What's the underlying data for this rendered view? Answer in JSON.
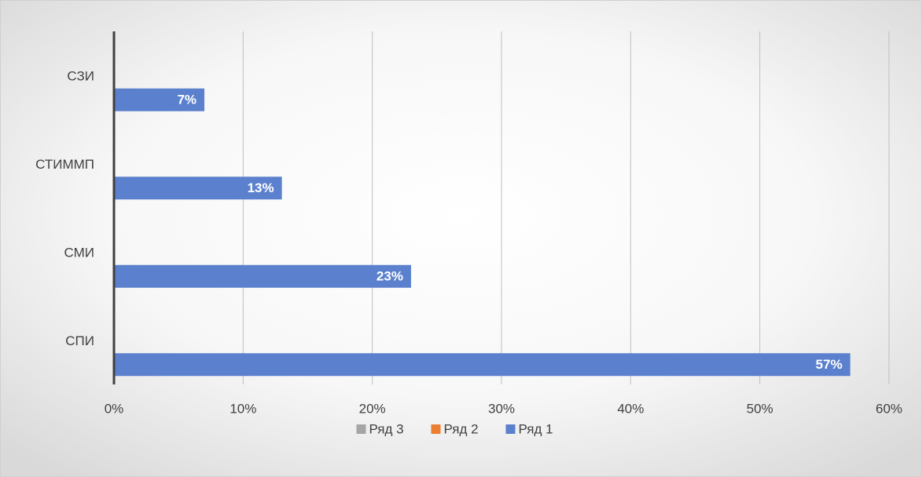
{
  "chart_data": {
    "type": "hbar",
    "categories": [
      "СПИ",
      "СМИ",
      "СТИММП",
      "СЗИ"
    ],
    "series": [
      {
        "name": "Ряд 1",
        "color": "#5b80cd",
        "values": [
          57,
          23,
          13,
          7
        ],
        "value_labels": [
          "57%",
          "23%",
          "13%",
          "7%"
        ]
      },
      {
        "name": "Ряд 2",
        "color": "#ed7d31",
        "values": [
          null,
          null,
          null,
          null
        ]
      },
      {
        "name": "Ряд 3",
        "color": "#a5a5a5",
        "values": [
          null,
          null,
          null,
          null
        ]
      }
    ],
    "xlim": [
      0,
      60
    ],
    "xticks": [
      {
        "value": 0,
        "label": "0%"
      },
      {
        "value": 10,
        "label": "10%"
      },
      {
        "value": 20,
        "label": "20%"
      },
      {
        "value": 30,
        "label": "30%"
      },
      {
        "value": 40,
        "label": "40%"
      },
      {
        "value": 50,
        "label": "50%"
      },
      {
        "value": 60,
        "label": "60%"
      }
    ],
    "grid": true,
    "legend": "bottom"
  }
}
